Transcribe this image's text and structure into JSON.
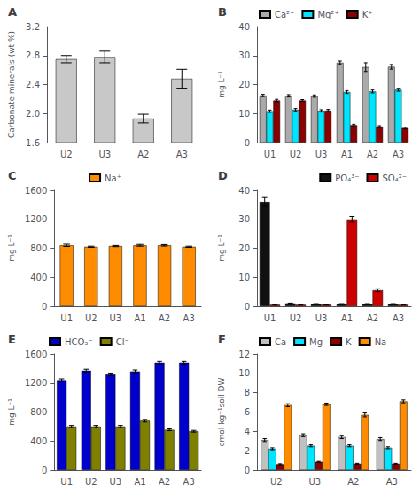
{
  "chart_data": [
    {
      "type": "bar",
      "title": "A",
      "categories": [
        "U2",
        "U3",
        "A2",
        "A3"
      ],
      "values": [
        2.75,
        2.78,
        1.93,
        2.48
      ],
      "errors": [
        0.05,
        0.08,
        0.06,
        0.13
      ],
      "color": "#c8c8c8",
      "ylabel": "Carbonate minerals (wt %)",
      "ylim": [
        1.6,
        3.2
      ],
      "yticks": [
        1.6,
        {
          "value": 2.0,
          "label": "2.0"
        },
        2.4,
        2.8,
        3.2
      ],
      "grid": false
    },
    {
      "type": "bar",
      "title": "B",
      "categories": [
        "U1",
        "U2",
        "U3",
        "A1",
        "A2",
        "A3"
      ],
      "series": [
        {
          "name": "Ca²⁺",
          "color": "#aaaaaa",
          "values": [
            16.2,
            16.1,
            16.0,
            27.5,
            26.0,
            26.1
          ],
          "errors": [
            0.4,
            0.4,
            0.4,
            0.6,
            1.5,
            0.8
          ]
        },
        {
          "name": "Mg²⁺",
          "color": "#00e5ff",
          "values": [
            10.8,
            11.3,
            10.9,
            17.4,
            17.6,
            18.2
          ],
          "errors": [
            0.4,
            0.4,
            0.4,
            0.5,
            0.5,
            0.5
          ]
        },
        {
          "name": "K⁺",
          "color": "#8b0000",
          "values": [
            14.5,
            14.5,
            11.0,
            6.0,
            5.5,
            5.0
          ],
          "errors": [
            0.4,
            0.3,
            0.4,
            0.3,
            0.3,
            0.3
          ]
        }
      ],
      "ylabel": "mg L⁻¹",
      "ylim": [
        0,
        40
      ],
      "yticks": [
        0,
        10,
        20,
        30,
        40
      ],
      "legend": "upper left",
      "grid": false
    },
    {
      "type": "bar",
      "title": "C",
      "categories": [
        "U1",
        "U2",
        "U3",
        "A1",
        "A2",
        "A3"
      ],
      "series": [
        {
          "name": "Na⁺",
          "color": "#ff8c00",
          "values": [
            840,
            820,
            830,
            840,
            840,
            820
          ],
          "errors": [
            15,
            8,
            8,
            12,
            10,
            8
          ]
        }
      ],
      "ylabel": "mg L⁻¹",
      "ylim": [
        0,
        1600
      ],
      "yticks": [
        0,
        400,
        800,
        1200,
        1600
      ],
      "legend": "upper center",
      "grid": false
    },
    {
      "type": "bar",
      "title": "D",
      "categories": [
        "U1",
        "U2",
        "U3",
        "A1",
        "A2",
        "A3"
      ],
      "series": [
        {
          "name": "PO₄³⁻",
          "color": "#111111",
          "values": [
            36.0,
            1.0,
            0.8,
            0.8,
            0.8,
            0.8
          ],
          "errors": [
            1.5,
            0.1,
            0.1,
            0.1,
            0.1,
            0.1
          ]
        },
        {
          "name": "SO₄²⁻",
          "color": "#cc0000",
          "values": [
            0.5,
            0.5,
            0.5,
            30.0,
            5.5,
            0.5
          ],
          "errors": [
            0.1,
            0.1,
            0.1,
            1.0,
            0.5,
            0.1
          ]
        }
      ],
      "ylabel": "mg L⁻¹",
      "ylim": [
        0,
        40
      ],
      "yticks": [
        0,
        10,
        20,
        30,
        40
      ],
      "legend": "upper right",
      "grid": false
    },
    {
      "type": "bar",
      "title": "E",
      "categories": [
        "U1",
        "U2",
        "U3",
        "A1",
        "A2",
        "A3"
      ],
      "series": [
        {
          "name": "HCO₃⁻",
          "color": "#0000cd",
          "values": [
            1240,
            1370,
            1320,
            1360,
            1480,
            1480
          ],
          "errors": [
            18,
            20,
            18,
            20,
            18,
            18
          ]
        },
        {
          "name": "Cl⁻",
          "color": "#808000",
          "values": [
            600,
            600,
            600,
            680,
            555,
            535
          ],
          "errors": [
            15,
            15,
            15,
            18,
            12,
            12
          ]
        }
      ],
      "ylabel": "mg L⁻¹",
      "ylim": [
        0,
        1600
      ],
      "yticks": [
        0,
        400,
        800,
        1200,
        1600
      ],
      "legend": "upper left",
      "grid": false
    },
    {
      "type": "bar",
      "title": "F",
      "categories": [
        "U2",
        "U3",
        "A2",
        "A3"
      ],
      "series": [
        {
          "name": "Ca",
          "color": "#c0c0c0",
          "values": [
            3.1,
            3.6,
            3.4,
            3.2
          ],
          "errors": [
            0.15,
            0.15,
            0.15,
            0.15
          ]
        },
        {
          "name": "Mg",
          "color": "#00e5ff",
          "values": [
            2.2,
            2.5,
            2.5,
            2.3
          ],
          "errors": [
            0.1,
            0.1,
            0.1,
            0.1
          ]
        },
        {
          "name": "K",
          "color": "#8b0000",
          "values": [
            0.6,
            0.85,
            0.65,
            0.65
          ],
          "errors": [
            0.05,
            0.05,
            0.05,
            0.05
          ]
        },
        {
          "name": "Na",
          "color": "#ff8c00",
          "values": [
            6.7,
            6.8,
            5.7,
            7.1
          ],
          "errors": [
            0.15,
            0.12,
            0.2,
            0.15
          ]
        }
      ],
      "ylabel": "cmol⁣ kg⁻¹soil DW",
      "ylim": [
        0,
        12
      ],
      "yticks": [
        0,
        2,
        4,
        6,
        8,
        10,
        12
      ],
      "legend": "upper left",
      "grid": false
    }
  ]
}
